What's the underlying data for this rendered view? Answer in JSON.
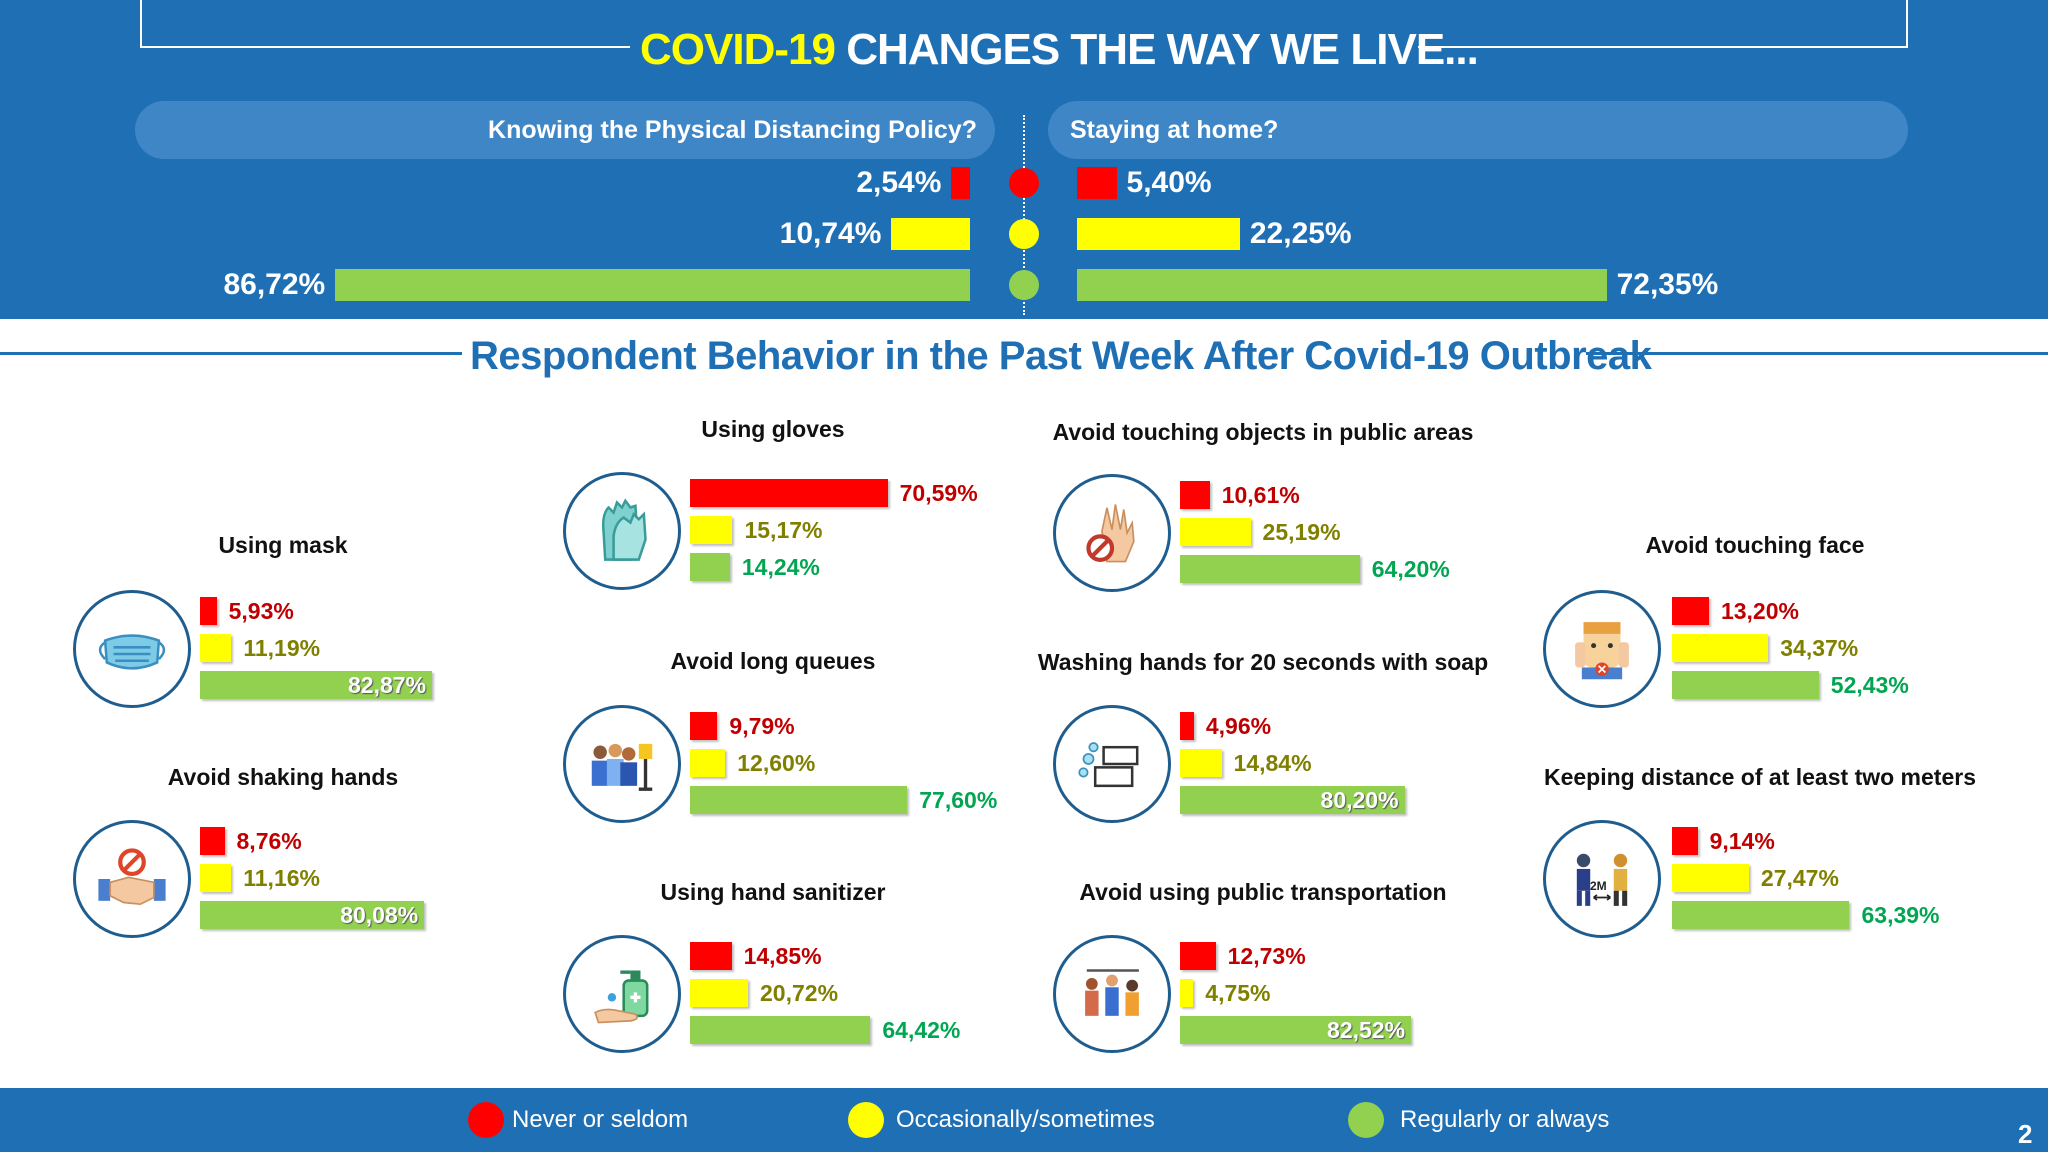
{
  "header": {
    "title_part1": "COVID-19",
    "title_part2": "CHANGES THE WAY WE LIVE..."
  },
  "top_chart": {
    "left_question": "Knowing the Physical Distancing Policy?",
    "right_question": "Staying at home?"
  },
  "section_title": "Respondent Behavior in the Past Week After Covid-19 Outbreak",
  "colors": {
    "band_blue": "#1f6fb5",
    "never": "#ff0000",
    "occasionally": "#ffff00",
    "regularly": "#92d050",
    "never_text": "#c00000",
    "occasionally_text": "#808000",
    "regularly_text": "#00a651"
  },
  "chart_data": [
    {
      "type": "bar",
      "title": "Knowing the Physical Distancing Policy?",
      "categories": [
        "Never or seldom",
        "Occasionally/sometimes",
        "Regularly or always"
      ],
      "values": [
        2.54,
        10.74,
        86.72
      ],
      "labels": [
        "2,54%",
        "10,74%",
        "86,72%"
      ]
    },
    {
      "type": "bar",
      "title": "Staying at home?",
      "categories": [
        "Never or seldom",
        "Occasionally/sometimes",
        "Regularly or always"
      ],
      "values": [
        5.4,
        22.25,
        72.35
      ],
      "labels": [
        "5,40%",
        "22,25%",
        "72,35%"
      ]
    },
    {
      "type": "bar",
      "title": "Using mask",
      "icon": "mask-icon",
      "categories": [
        "Never or seldom",
        "Occasionally/sometimes",
        "Regularly or always"
      ],
      "values": [
        5.93,
        11.19,
        82.87
      ],
      "labels": [
        "5,93%",
        "11,19%",
        "82,87%"
      ]
    },
    {
      "type": "bar",
      "title": "Avoid shaking hands",
      "icon": "handshake-icon",
      "categories": [
        "Never or seldom",
        "Occasionally/sometimes",
        "Regularly or always"
      ],
      "values": [
        8.76,
        11.16,
        80.08
      ],
      "labels": [
        "8,76%",
        "11,16%",
        "80,08%"
      ]
    },
    {
      "type": "bar",
      "title": "Using gloves",
      "icon": "gloves-icon",
      "categories": [
        "Never or seldom",
        "Occasionally/sometimes",
        "Regularly or always"
      ],
      "values": [
        70.59,
        15.17,
        14.24
      ],
      "labels": [
        "70,59%",
        "15,17%",
        "14,24%"
      ]
    },
    {
      "type": "bar",
      "title": "Avoid long queues",
      "icon": "queue-icon",
      "categories": [
        "Never or seldom",
        "Occasionally/sometimes",
        "Regularly or always"
      ],
      "values": [
        9.79,
        12.6,
        77.6
      ],
      "labels": [
        "9,79%",
        "12,60%",
        "77,60%"
      ]
    },
    {
      "type": "bar",
      "title": "Using hand sanitizer",
      "icon": "sanitizer-icon",
      "categories": [
        "Never or seldom",
        "Occasionally/sometimes",
        "Regularly or always"
      ],
      "values": [
        14.85,
        20.72,
        64.42
      ],
      "labels": [
        "14,85%",
        "20,72%",
        "64,42%"
      ]
    },
    {
      "type": "bar",
      "title": "Avoid touching objects in public areas",
      "icon": "no-touch-icon",
      "categories": [
        "Never or seldom",
        "Occasionally/sometimes",
        "Regularly or always"
      ],
      "values": [
        10.61,
        25.19,
        64.2
      ],
      "labels": [
        "10,61%",
        "25,19%",
        "64,20%"
      ]
    },
    {
      "type": "bar",
      "title": "Washing hands for 20 seconds with soap",
      "icon": "handwash-icon",
      "categories": [
        "Never or seldom",
        "Occasionally/sometimes",
        "Regularly or always"
      ],
      "values": [
        4.96,
        14.84,
        80.2
      ],
      "labels": [
        "4,96%",
        "14,84%",
        "80,20%"
      ]
    },
    {
      "type": "bar",
      "title": "Avoid using public transportation",
      "icon": "transport-icon",
      "categories": [
        "Never or seldom",
        "Occasionally/sometimes",
        "Regularly or always"
      ],
      "values": [
        12.73,
        4.75,
        82.52
      ],
      "labels": [
        "12,73%",
        "4,75%",
        "82,52%"
      ]
    },
    {
      "type": "bar",
      "title": "Avoid touching face",
      "icon": "face-icon",
      "categories": [
        "Never or seldom",
        "Occasionally/sometimes",
        "Regularly or always"
      ],
      "values": [
        13.2,
        34.37,
        52.43
      ],
      "labels": [
        "13,20%",
        "34,37%",
        "52,43%"
      ]
    },
    {
      "type": "bar",
      "title": "Keeping distance of at least two meters",
      "icon": "distance-icon",
      "categories": [
        "Never or seldom",
        "Occasionally/sometimes",
        "Regularly or always"
      ],
      "values": [
        9.14,
        27.47,
        63.39
      ],
      "labels": [
        "9,14%",
        "27,47%",
        "63,39%"
      ],
      "icon_text": "2M"
    }
  ],
  "legend": {
    "never": "Never or seldom",
    "occasionally": "Occasionally/sometimes",
    "regularly": "Regularly or always"
  },
  "page_number": "2"
}
